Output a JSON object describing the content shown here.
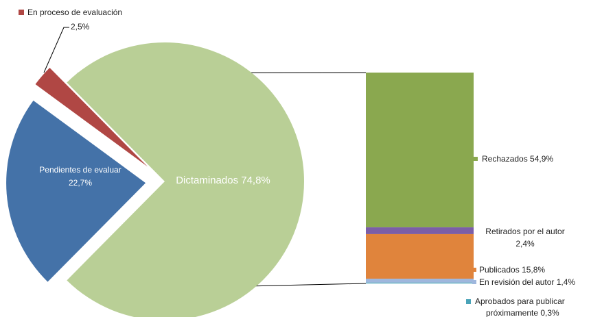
{
  "chart_data": {
    "type": "pie",
    "subtype": "bar-of-pie",
    "slices": [
      {
        "name": "Dictaminados",
        "value": 74.8,
        "label": "Dictaminados 74,8%",
        "color": "#b9cf96"
      },
      {
        "name": "Pendientes de evaluar",
        "value": 22.7,
        "label_line1": "Pendientes de evaluar",
        "label_line2": "22,7%",
        "color": "#4472a8"
      },
      {
        "name": "En proceso de evaluación",
        "value": 2.5,
        "label_line1": "En proceso de evaluación",
        "label_line2": "2,5%",
        "color": "#b04744"
      }
    ],
    "breakdown": {
      "parent": "Dictaminados",
      "segments": [
        {
          "name": "Rechazados",
          "value": 54.9,
          "label": "Rechazados 54,9%",
          "color": "#8aa84f"
        },
        {
          "name": "Retirados por el autor",
          "value": 2.4,
          "label_line1": "Retirados por el autor",
          "label_line2": "2,4%",
          "color": "#7b5ea7"
        },
        {
          "name": "Publicados",
          "value": 15.8,
          "label": "Publicados 15,8%",
          "color": "#e0843c"
        },
        {
          "name": "En revisión del autor",
          "value": 1.4,
          "label": "En revisión del autor 1,4%",
          "color": "#9fb7dd"
        },
        {
          "name": "Aprobados para publicar próximamente",
          "value": 0.3,
          "label_line1": "Aprobados para publicar",
          "label_line2": "próximamente 0,3%",
          "color": "#4aa3b8"
        }
      ]
    }
  }
}
